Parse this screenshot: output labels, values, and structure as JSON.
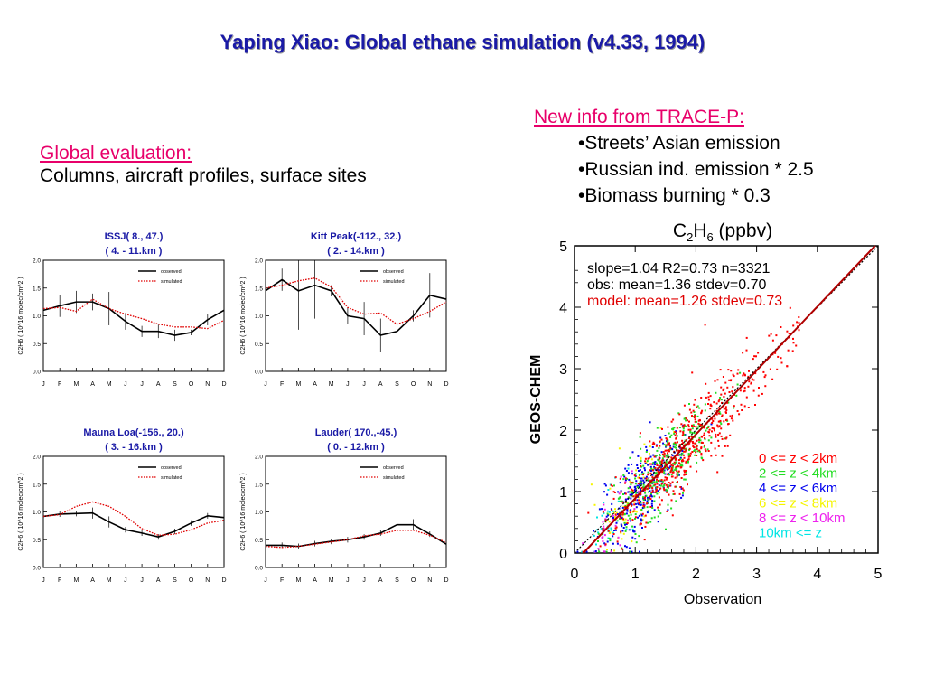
{
  "slide": {
    "title": "Yaping Xiao: Global ethane simulation (v4.33, 1994)"
  },
  "global_evaluation": {
    "heading": "Global evaluation:",
    "text": "Columns, aircraft profiles, surface sites"
  },
  "trace_p": {
    "heading": "New info from TRACE-P:",
    "bullets": [
      "•Streets’ Asian emission",
      "•Russian ind. emission * 2.5",
      "•Biomass burning * 0.3"
    ]
  },
  "colors": {
    "title_blue": "#1a1aa6",
    "heading_pink": "#e8006a",
    "observed": "#000000",
    "simulated": "#e00000"
  },
  "chart_data": [
    {
      "type": "line",
      "title": "ISSJ(   8., 47.)",
      "subtitle": "(  4.  -  11.km )",
      "ylabel": "C2H6 ( 10^16 molec/cm^2 )",
      "ylim": [
        0,
        2.0
      ],
      "yticks": [
        "0.0",
        "0.5",
        "1.0",
        "1.5",
        "2.0"
      ],
      "categories": [
        "J",
        "F",
        "M",
        "A",
        "M",
        "J",
        "J",
        "A",
        "S",
        "O",
        "N",
        "D"
      ],
      "series": [
        {
          "name": "observed",
          "values": [
            1.1,
            1.18,
            1.25,
            1.25,
            1.13,
            0.9,
            0.72,
            0.72,
            0.65,
            0.7,
            0.93,
            1.1
          ]
        },
        {
          "name": "simulated",
          "values": [
            1.13,
            1.15,
            1.08,
            1.3,
            1.13,
            1.03,
            0.95,
            0.85,
            0.8,
            0.8,
            0.77,
            0.92
          ]
        }
      ],
      "error": [
        0.15,
        0.2,
        0.2,
        0.15,
        0.3,
        0.15,
        0.1,
        0.12,
        0.1,
        0.05,
        0.1,
        0.1
      ]
    },
    {
      "type": "line",
      "title": "Kitt Peak(-112., 32.)",
      "subtitle": "(  2.  -  14.km )",
      "ylabel": "C2H6 ( 10^16 molec/cm^2 )",
      "ylim": [
        0,
        2.0
      ],
      "yticks": [
        "0.0",
        "0.5",
        "1.0",
        "1.5",
        "2.0"
      ],
      "categories": [
        "J",
        "F",
        "M",
        "A",
        "M",
        "J",
        "J",
        "A",
        "S",
        "O",
        "N",
        "D"
      ],
      "series": [
        {
          "name": "observed",
          "values": [
            1.45,
            1.65,
            1.45,
            1.55,
            1.45,
            1.0,
            0.95,
            0.65,
            0.72,
            1.0,
            1.37,
            1.3
          ]
        },
        {
          "name": "simulated",
          "values": [
            1.5,
            1.55,
            1.63,
            1.68,
            1.52,
            1.15,
            1.03,
            1.05,
            0.85,
            0.95,
            1.08,
            1.25
          ]
        }
      ],
      "error": [
        0.1,
        0.2,
        0.7,
        0.6,
        0.1,
        0.15,
        0.3,
        0.3,
        0.1,
        0.1,
        0.4,
        0.1
      ]
    },
    {
      "type": "line",
      "title": "Mauna Loa(-156., 20.)",
      "subtitle": "(  3.  -  16.km )",
      "ylabel": "C2H6 ( 10^16 molec/cm^2 )",
      "ylim": [
        0,
        2.0
      ],
      "yticks": [
        "0.0",
        "0.5",
        "1.0",
        "1.5",
        "2.0"
      ],
      "categories": [
        "J",
        "F",
        "M",
        "A",
        "M",
        "J",
        "J",
        "A",
        "S",
        "O",
        "N",
        "D"
      ],
      "series": [
        {
          "name": "observed",
          "values": [
            0.92,
            0.96,
            0.97,
            0.98,
            0.82,
            0.68,
            0.62,
            0.55,
            0.65,
            0.8,
            0.93,
            0.9
          ]
        },
        {
          "name": "simulated",
          "values": [
            0.92,
            0.95,
            1.1,
            1.18,
            1.1,
            0.92,
            0.7,
            0.58,
            0.6,
            0.68,
            0.8,
            0.85
          ]
        }
      ],
      "error": [
        0.05,
        0.05,
        0.05,
        0.1,
        0.1,
        0.05,
        0.05,
        0.05,
        0.05,
        0.05,
        0.05,
        0.05
      ]
    },
    {
      "type": "line",
      "title": "Lauder( 170.,-45.)",
      "subtitle": "(  0.  -  12.km )",
      "ylabel": "C2H6 ( 10^16 molec/cm^2 )",
      "ylim": [
        0,
        2.0
      ],
      "yticks": [
        "0.0",
        "0.5",
        "1.0",
        "1.5",
        "2.0"
      ],
      "categories": [
        "J",
        "F",
        "M",
        "A",
        "M",
        "J",
        "J",
        "A",
        "S",
        "O",
        "N",
        "D"
      ],
      "series": [
        {
          "name": "observed",
          "values": [
            0.4,
            0.4,
            0.38,
            0.43,
            0.47,
            0.5,
            0.55,
            0.62,
            0.77,
            0.77,
            0.6,
            0.42
          ]
        },
        {
          "name": "simulated",
          "values": [
            0.38,
            0.36,
            0.38,
            0.42,
            0.46,
            0.5,
            0.57,
            0.6,
            0.67,
            0.67,
            0.58,
            0.45
          ]
        }
      ],
      "error": [
        0.05,
        0.05,
        0.05,
        0.05,
        0.05,
        0.05,
        0.05,
        0.05,
        0.1,
        0.1,
        0.05,
        0.05
      ]
    },
    {
      "type": "scatter",
      "title": "C2H6 (ppbv)",
      "xlabel": "Observation",
      "ylabel": "GEOS-CHEM",
      "xlim": [
        0,
        5
      ],
      "ylim": [
        0,
        5
      ],
      "xticks": [
        "0",
        "1",
        "2",
        "3",
        "4",
        "5"
      ],
      "yticks": [
        "0",
        "1",
        "2",
        "3",
        "4",
        "5"
      ],
      "stats": [
        {
          "text": "slope=1.04  R2=0.73  n=3321",
          "color": "#000000"
        },
        {
          "text": "obs:   mean=1.36  stdev=0.70",
          "color": "#000000"
        },
        {
          "text": "model: mean=1.26  stdev=0.73",
          "color": "#e00000"
        }
      ],
      "legend": [
        {
          "label": "0 <= z < 2km",
          "color": "#ff0000"
        },
        {
          "label": "2 <= z < 4km",
          "color": "#22dd22"
        },
        {
          "label": "4 <= z < 6km",
          "color": "#0000ee"
        },
        {
          "label": "6 <= z < 8km",
          "color": "#f5f500"
        },
        {
          "label": "8 <= z < 10km",
          "color": "#ee22ee"
        },
        {
          "label": "10km <= z",
          "color": "#00e5e5"
        }
      ],
      "fit": {
        "slope": 1.04,
        "intercept": -0.15
      },
      "one_to_one": {
        "slope": 1,
        "intercept": 0
      },
      "n": 3321,
      "obs_mean": 1.36,
      "obs_stdev": 0.7,
      "model_mean": 1.26,
      "model_stdev": 0.73
    }
  ]
}
